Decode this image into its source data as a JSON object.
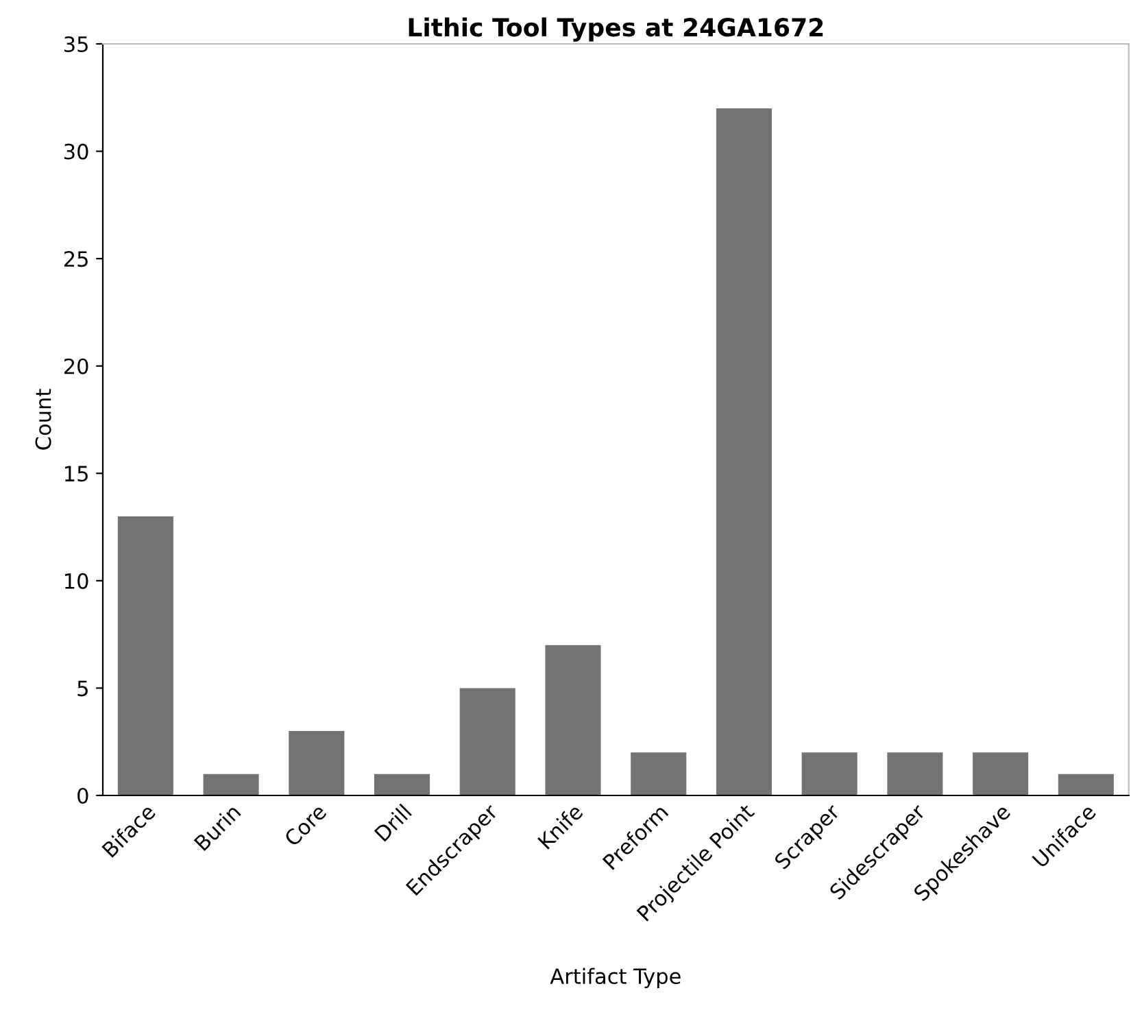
{
  "chart_data": {
    "type": "bar",
    "title": "Lithic Tool Types at 24GA1672",
    "xlabel": "Artifact Type",
    "ylabel": "Count",
    "categories": [
      "Biface",
      "Burin",
      "Core",
      "Drill",
      "Endscraper",
      "Knife",
      "Preform",
      "Projectile Point",
      "Scraper",
      "Sidescraper",
      "Spokeshave",
      "Uniface"
    ],
    "values": [
      13,
      1,
      3,
      1,
      5,
      7,
      2,
      32,
      2,
      2,
      2,
      1
    ],
    "color": "#737373",
    "ylim": [
      0,
      35
    ],
    "yticks": [
      0,
      5,
      10,
      15,
      20,
      25,
      30,
      35
    ],
    "grid": false,
    "legend": false
  }
}
